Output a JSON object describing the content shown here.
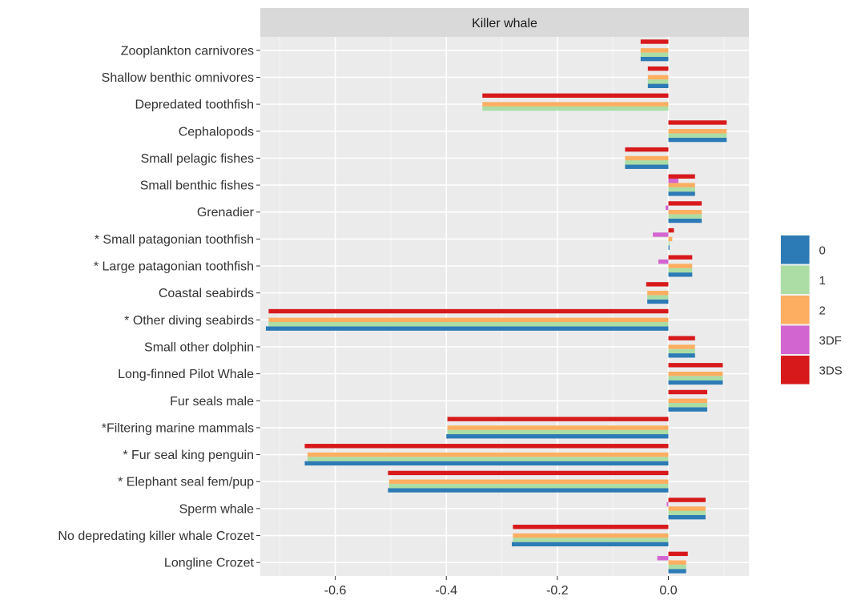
{
  "chart_data": {
    "type": "bar",
    "orientation": "horizontal",
    "facet_title": "Killer whale",
    "categories": [
      "Zooplankton carnivores",
      "Shallow benthic omnivores",
      "Depredated toothfish",
      "Cephalopods",
      "Small pelagic fishes",
      "Small benthic fishes",
      "Grenadier",
      "* Small patagonian toothfish",
      "* Large patagonian toothfish",
      "Coastal seabirds",
      "* Other diving seabirds",
      "Small other dolphin",
      "Long-finned Pilot Whale",
      "Fur seals male",
      "*Filtering marine mammals",
      "* Fur seal king penguin",
      "* Elephant seal fem/pup",
      "Sperm whale",
      "No depredating killer whale Crozet",
      "Longline Crozet"
    ],
    "series": [
      {
        "name": "0",
        "color": "#2c7bb6",
        "values": [
          -0.05,
          -0.037,
          0.0,
          0.105,
          -0.078,
          0.048,
          0.06,
          0.002,
          0.043,
          -0.038,
          -0.725,
          0.048,
          0.098,
          0.07,
          -0.4,
          -0.655,
          -0.505,
          0.067,
          -0.282,
          0.032
        ]
      },
      {
        "name": "1",
        "color": "#abdda4",
        "values": [
          -0.05,
          -0.037,
          -0.335,
          0.105,
          -0.078,
          0.048,
          0.06,
          0.002,
          0.043,
          -0.038,
          -0.72,
          0.048,
          0.098,
          0.07,
          -0.398,
          -0.65,
          -0.503,
          0.067,
          -0.28,
          0.032
        ]
      },
      {
        "name": "2",
        "color": "#fdae61",
        "values": [
          -0.05,
          -0.037,
          -0.335,
          0.105,
          -0.078,
          0.048,
          0.06,
          0.007,
          0.043,
          -0.038,
          -0.72,
          0.048,
          0.098,
          0.07,
          -0.398,
          -0.65,
          -0.503,
          0.067,
          -0.28,
          0.032
        ]
      },
      {
        "name": "3DF",
        "color": "#d265cf",
        "values": [
          0.0,
          0.0,
          0.0,
          0.0,
          0.0,
          0.018,
          -0.005,
          -0.028,
          -0.018,
          0.0,
          0.0,
          0.0,
          0.0,
          0.0,
          0.0,
          0.0,
          0.0,
          -0.003,
          0.0,
          -0.02
        ]
      },
      {
        "name": "3DS",
        "color": "#d7191c",
        "values": [
          -0.05,
          -0.037,
          -0.335,
          0.105,
          -0.078,
          0.048,
          0.06,
          0.01,
          0.043,
          -0.04,
          -0.72,
          0.048,
          0.098,
          0.07,
          -0.398,
          -0.655,
          -0.505,
          0.067,
          -0.28,
          0.035
        ]
      }
    ],
    "xticks": [
      -0.6,
      -0.4,
      -0.2,
      0.0
    ],
    "xtick_labels": [
      "-0.6",
      "-0.4",
      "-0.2",
      "0.0"
    ],
    "xlim": [
      -0.735,
      0.145
    ],
    "xlabel": "",
    "ylabel": "",
    "grid": true,
    "legend_position": "right"
  }
}
